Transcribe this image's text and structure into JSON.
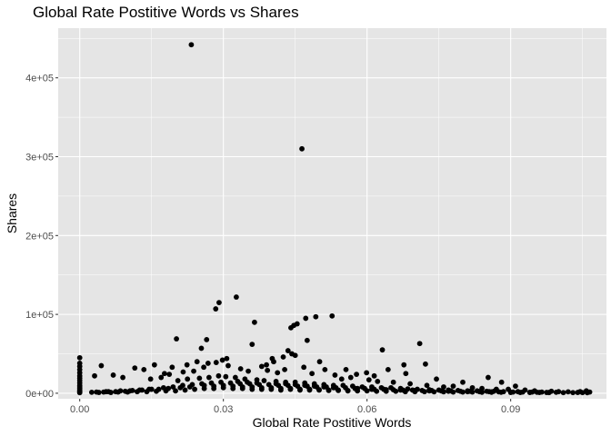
{
  "chart_data": {
    "type": "scatter",
    "title": "Global Rate Postitive Words vs Shares",
    "xlabel": "Global Rate Postitive Words",
    "ylabel": "Shares",
    "xlim": [
      -0.0045,
      0.11
    ],
    "ylim": [
      -7000,
      463000
    ],
    "x_ticks": [
      0.0,
      0.03,
      0.06,
      0.09
    ],
    "x_tick_labels": [
      "0.00",
      "0.03",
      "0.06",
      "0.09"
    ],
    "y_ticks": [
      0,
      100000,
      200000,
      300000,
      400000
    ],
    "y_tick_labels": [
      "0e+00",
      "1e+05",
      "2e+05",
      "3e+05",
      "4e+05"
    ],
    "grid": true,
    "panel_background": "#e5e5e5",
    "grid_color": "#ffffff",
    "point_color": "#000000",
    "series": [
      {
        "x": [
          0.0233,
          0.0464,
          0.0327,
          0.0291,
          0.0284,
          0.0527,
          0.0493,
          0.0365,
          0.0472,
          0.0447,
          0.0454,
          0.0202,
          0.0441,
          0.0265,
          0.0475,
          0.071,
          0.036,
          0.0632,
          0.0254,
          0.0435,
          0.0443,
          0.045,
          0.0425,
          0.0402,
          0.0722,
          0.0,
          0.0,
          0.0,
          0.0,
          0.0,
          0.0,
          0.0,
          0.0,
          0.0,
          0.0,
          0.0,
          0.0,
          0.0,
          0.0,
          0.0,
          0.0,
          0.0307,
          0.0298,
          0.0245,
          0.0193,
          0.0156,
          0.0134,
          0.0115,
          0.009,
          0.007,
          0.0045,
          0.0031,
          0.0285,
          0.031,
          0.0336,
          0.0352,
          0.039,
          0.0405,
          0.0468,
          0.0501,
          0.0512,
          0.0556,
          0.0578,
          0.0599,
          0.0615,
          0.0644,
          0.0677,
          0.0681,
          0.0745,
          0.08,
          0.0853,
          0.0881,
          0.091,
          0.0268,
          0.0259,
          0.0224,
          0.0238,
          0.0216,
          0.0187,
          0.0177,
          0.017,
          0.0148,
          0.0392,
          0.038,
          0.0413,
          0.0428,
          0.0485,
          0.0533,
          0.0547,
          0.0566,
          0.0604,
          0.0622,
          0.0655,
          0.069,
          0.0725,
          0.076,
          0.078,
          0.082,
          0.084,
          0.087,
          0.0895,
          0.093,
          0.095,
          0.0985,
          0.1,
          0.102,
          0.1045,
          0.1058,
          0.1065,
          0.0025,
          0.004,
          0.0055,
          0.0065,
          0.008,
          0.01,
          0.012,
          0.014,
          0.016,
          0.018,
          0.02,
          0.022,
          0.024,
          0.026,
          0.028,
          0.03,
          0.032,
          0.034,
          0.036,
          0.038,
          0.04,
          0.042,
          0.044,
          0.046,
          0.048,
          0.05,
          0.052,
          0.054,
          0.056,
          0.058,
          0.06,
          0.062,
          0.064,
          0.066,
          0.068,
          0.07,
          0.072,
          0.074,
          0.076,
          0.078,
          0.08,
          0.082,
          0.084,
          0.086,
          0.088,
          0.09,
          0.092,
          0.094,
          0.096,
          0.098,
          0.101,
          0.103,
          0.105,
          0.106,
          0.0035,
          0.006,
          0.0085,
          0.011,
          0.013,
          0.015,
          0.0175,
          0.0195,
          0.0215,
          0.0235,
          0.0255,
          0.0275,
          0.0295,
          0.0315,
          0.0335,
          0.0355,
          0.0375,
          0.0395,
          0.0415,
          0.0435,
          0.0455,
          0.0475,
          0.0495,
          0.0515,
          0.0535,
          0.0555,
          0.0575,
          0.0595,
          0.0615,
          0.0635,
          0.0655,
          0.0675,
          0.0695,
          0.0715,
          0.0735,
          0.0755,
          0.0775,
          0.0795,
          0.0815,
          0.0835,
          0.0855,
          0.0875,
          0.0905,
          0.0925,
          0.0955,
          0.0975,
          0.0205,
          0.0225,
          0.025,
          0.027,
          0.029,
          0.0305,
          0.0325,
          0.0345,
          0.037,
          0.0385,
          0.041,
          0.043,
          0.045,
          0.047,
          0.049,
          0.051,
          0.053,
          0.055,
          0.057,
          0.059,
          0.061,
          0.063,
          0.065,
          0.067,
          0.0685,
          0.0705,
          0.073,
          0.075,
          0.077,
          0.079,
          0.081,
          0.083,
          0.085,
          0.0865,
          0.0885,
          0.0915,
          0.0945,
          0.0965,
          0.0995,
          0.104,
          0.028,
          0.03,
          0.032,
          0.034,
          0.036,
          0.038,
          0.04,
          0.042,
          0.044,
          0.046,
          0.048,
          0.05,
          0.052,
          0.054,
          0.056,
          0.0165,
          0.0185,
          0.021,
          0.023,
          0.026,
          0.033,
          0.035,
          0.037,
          0.041,
          0.043,
          0.045,
          0.047,
          0.049,
          0.051,
          0.053,
          0.058,
          0.061,
          0.064,
          0.067,
          0.07,
          0.073,
          0.077,
          0.081,
          0.086,
          0.09,
          0.094,
          0.098,
          0.0125,
          0.0145,
          0.0105,
          0.0095,
          0.0075,
          0.005
        ],
        "y": [
          442000,
          310000,
          122000,
          115000,
          107000,
          98000,
          97000,
          90000,
          95000,
          86000,
          88000,
          69000,
          83000,
          68000,
          67000,
          63000,
          62000,
          55000,
          57000,
          54000,
          50000,
          48000,
          46000,
          44000,
          37000,
          45000,
          38000,
          34000,
          30000,
          26000,
          22000,
          19000,
          16000,
          13000,
          10000,
          8000,
          6000,
          4000,
          2500,
          1500,
          700,
          44000,
          42000,
          40000,
          33000,
          36000,
          30000,
          32000,
          20000,
          23000,
          35000,
          22000,
          39000,
          35000,
          31000,
          28000,
          36000,
          40000,
          33000,
          40000,
          30000,
          30000,
          24000,
          26000,
          22000,
          30000,
          36000,
          25000,
          18000,
          14000,
          20000,
          14000,
          9000,
          38000,
          33000,
          36000,
          28000,
          27000,
          24000,
          25000,
          20000,
          18000,
          29000,
          34000,
          26000,
          30000,
          25000,
          23000,
          18000,
          20000,
          17000,
          15000,
          14000,
          12000,
          10000,
          8000,
          9000,
          7000,
          6000,
          5000,
          5000,
          4000,
          3000,
          2500,
          2000,
          1800,
          2000,
          3000,
          1500,
          1200,
          1000,
          2000,
          1000,
          1500,
          1500,
          2000,
          2000,
          2500,
          3000,
          3000,
          4000,
          5000,
          6000,
          6000,
          7000,
          6000,
          6000,
          5000,
          5000,
          5000,
          4000,
          5000,
          4000,
          4000,
          4000,
          3500,
          3500,
          3000,
          3000,
          3000,
          2500,
          2500,
          2500,
          2000,
          2000,
          2000,
          1800,
          1800,
          1500,
          1500,
          1500,
          1200,
          1200,
          1200,
          1000,
          1000,
          1000,
          1000,
          800,
          800,
          800,
          800,
          700,
          1500,
          2000,
          3000,
          3500,
          4000,
          5000,
          7000,
          8000,
          10000,
          11000,
          12000,
          13000,
          14000,
          13000,
          12000,
          12000,
          11000,
          11000,
          10000,
          10000,
          9000,
          9000,
          8000,
          8000,
          7000,
          7000,
          6000,
          6000,
          5000,
          5000,
          4500,
          4000,
          4000,
          3500,
          3500,
          3000,
          3000,
          2500,
          2500,
          2000,
          2000,
          1800,
          1500,
          1500,
          1200,
          1000,
          16000,
          18000,
          19000,
          20000,
          22000,
          21000,
          20000,
          18000,
          17000,
          16000,
          15000,
          14000,
          14000,
          13000,
          12000,
          11000,
          10000,
          10000,
          9000,
          8000,
          8000,
          7000,
          7000,
          6000,
          5500,
          5000,
          4500,
          4000,
          4000,
          3500,
          3000,
          3000,
          2500,
          2500,
          2000,
          2000,
          1500,
          1500,
          1200,
          1000,
          9000,
          10000,
          9000,
          8000,
          8000,
          7000,
          7000,
          6000,
          6000,
          5000,
          5000,
          4500,
          4000,
          4000,
          3500,
          5000,
          6000,
          7000,
          8000,
          10000,
          15000,
          14000,
          13000,
          12000,
          12000,
          11000,
          10000,
          9000,
          8000,
          7000,
          6000,
          5000,
          4500,
          4000,
          3500,
          3000,
          2500,
          2000,
          1800,
          1500,
          1200,
          1000,
          4000,
          5000,
          3000,
          2500,
          2000,
          1500
        ]
      }
    ]
  }
}
